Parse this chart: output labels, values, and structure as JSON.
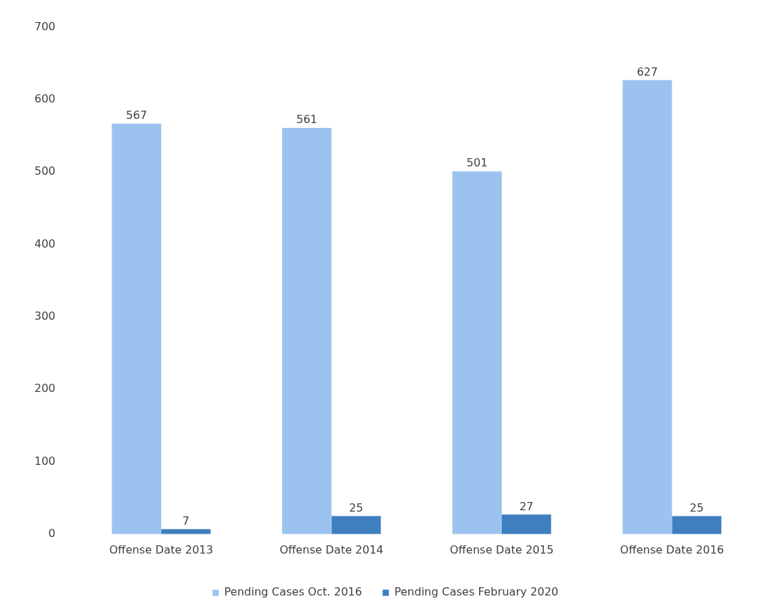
{
  "chart_data": {
    "type": "bar",
    "categories": [
      "Offense Date 2013",
      "Offense Date 2014",
      "Offense Date 2015",
      "Offense Date 2016"
    ],
    "series": [
      {
        "name": "Pending Cases Oct. 2016",
        "color": "#9cc3f0",
        "values": [
          567,
          561,
          501,
          627
        ]
      },
      {
        "name": "Pending Cases February 2020",
        "color": "#3f7fbf",
        "values": [
          7,
          25,
          27,
          25
        ]
      }
    ],
    "ylim": [
      0,
      700
    ],
    "yticks": [
      0,
      100,
      200,
      300,
      400,
      500,
      600,
      700
    ],
    "grid": false,
    "legend": "bottom",
    "data_labels": true
  }
}
